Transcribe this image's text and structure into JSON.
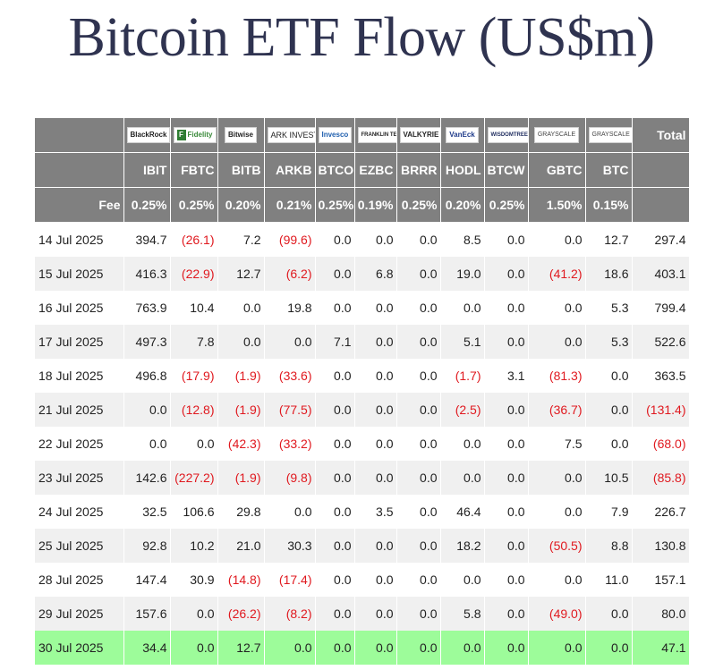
{
  "title": "Bitcoin ETF Flow (US$m)",
  "header": {
    "logos": [
      {
        "ticker": "IBIT",
        "text": "BlackRock",
        "icon": "blackrock-logo"
      },
      {
        "ticker": "FBTC",
        "text": "Fidelity",
        "icon": "fidelity-logo"
      },
      {
        "ticker": "BITB",
        "text": "Bitwise",
        "icon": "bitwise-logo"
      },
      {
        "ticker": "ARKB",
        "text": "ARK INVEST",
        "icon": "ark-invest-logo"
      },
      {
        "ticker": "BTCO",
        "text": "Invesco",
        "icon": "invesco-logo"
      },
      {
        "ticker": "EZBC",
        "text": "FRANKLIN TEMPLETON",
        "icon": "franklin-templeton-logo"
      },
      {
        "ticker": "BRRR",
        "text": "VALKYRIE",
        "icon": "valkyrie-logo"
      },
      {
        "ticker": "HODL",
        "text": "VanEck",
        "icon": "vaneck-logo"
      },
      {
        "ticker": "BTCW",
        "text": "WISDOMTREE",
        "icon": "wisdomtree-logo"
      },
      {
        "ticker": "GBTC",
        "text": "GRAYSCALE",
        "icon": "grayscale-logo"
      },
      {
        "ticker": "BTC",
        "text": "GRAYSCALE",
        "icon": "grayscale-logo"
      }
    ],
    "total_label": "Total",
    "tickers": [
      "IBIT",
      "FBTC",
      "BITB",
      "ARKB",
      "BTCO",
      "EZBC",
      "BRRR",
      "HODL",
      "BTCW",
      "GBTC",
      "BTC"
    ],
    "fee_label": "Fee",
    "fees": [
      "0.25%",
      "0.25%",
      "0.20%",
      "0.21%",
      "0.25%",
      "0.19%",
      "0.25%",
      "0.20%",
      "0.25%",
      "1.50%",
      "0.15%"
    ]
  },
  "rows": [
    {
      "date": "14 Jul 2025",
      "values": [
        "394.7",
        "(26.1)",
        "7.2",
        "(99.6)",
        "0.0",
        "0.0",
        "0.0",
        "8.5",
        "0.0",
        "0.0",
        "12.7"
      ],
      "total": "297.4"
    },
    {
      "date": "15 Jul 2025",
      "values": [
        "416.3",
        "(22.9)",
        "12.7",
        "(6.2)",
        "0.0",
        "6.8",
        "0.0",
        "19.0",
        "0.0",
        "(41.2)",
        "18.6"
      ],
      "total": "403.1"
    },
    {
      "date": "16 Jul 2025",
      "values": [
        "763.9",
        "10.4",
        "0.0",
        "19.8",
        "0.0",
        "0.0",
        "0.0",
        "0.0",
        "0.0",
        "0.0",
        "5.3"
      ],
      "total": "799.4"
    },
    {
      "date": "17 Jul 2025",
      "values": [
        "497.3",
        "7.8",
        "0.0",
        "0.0",
        "7.1",
        "0.0",
        "0.0",
        "5.1",
        "0.0",
        "0.0",
        "5.3"
      ],
      "total": "522.6"
    },
    {
      "date": "18 Jul 2025",
      "values": [
        "496.8",
        "(17.9)",
        "(1.9)",
        "(33.6)",
        "0.0",
        "0.0",
        "0.0",
        "(1.7)",
        "3.1",
        "(81.3)",
        "0.0"
      ],
      "total": "363.5"
    },
    {
      "date": "21 Jul 2025",
      "values": [
        "0.0",
        "(12.8)",
        "(1.9)",
        "(77.5)",
        "0.0",
        "0.0",
        "0.0",
        "(2.5)",
        "0.0",
        "(36.7)",
        "0.0"
      ],
      "total": "(131.4)"
    },
    {
      "date": "22 Jul 2025",
      "values": [
        "0.0",
        "0.0",
        "(42.3)",
        "(33.2)",
        "0.0",
        "0.0",
        "0.0",
        "0.0",
        "0.0",
        "7.5",
        "0.0"
      ],
      "total": "(68.0)"
    },
    {
      "date": "23 Jul 2025",
      "values": [
        "142.6",
        "(227.2)",
        "(1.9)",
        "(9.8)",
        "0.0",
        "0.0",
        "0.0",
        "0.0",
        "0.0",
        "0.0",
        "10.5"
      ],
      "total": "(85.8)"
    },
    {
      "date": "24 Jul 2025",
      "values": [
        "32.5",
        "106.6",
        "29.8",
        "0.0",
        "0.0",
        "3.5",
        "0.0",
        "46.4",
        "0.0",
        "0.0",
        "7.9"
      ],
      "total": "226.7"
    },
    {
      "date": "25 Jul 2025",
      "values": [
        "92.8",
        "10.2",
        "21.0",
        "30.3",
        "0.0",
        "0.0",
        "0.0",
        "18.2",
        "0.0",
        "(50.5)",
        "8.8"
      ],
      "total": "130.8"
    },
    {
      "date": "28 Jul 2025",
      "values": [
        "147.4",
        "30.9",
        "(14.8)",
        "(17.4)",
        "0.0",
        "0.0",
        "0.0",
        "0.0",
        "0.0",
        "0.0",
        "11.0"
      ],
      "total": "157.1"
    },
    {
      "date": "29 Jul 2025",
      "values": [
        "157.6",
        "0.0",
        "(26.2)",
        "(8.2)",
        "0.0",
        "0.0",
        "0.0",
        "5.8",
        "0.0",
        "(49.0)",
        "0.0"
      ],
      "total": "80.0"
    },
    {
      "date": "30 Jul 2025",
      "values": [
        "34.4",
        "0.0",
        "12.7",
        "0.0",
        "0.0",
        "0.0",
        "0.0",
        "0.0",
        "0.0",
        "0.0",
        "0.0"
      ],
      "total": "47.1",
      "highlight": true
    }
  ],
  "colors": {
    "header_bg": "#808080",
    "negative": "#e0191f",
    "highlight": "#9dfc9a",
    "title": "#2f3350",
    "alt_row": "#f0f0f0"
  }
}
